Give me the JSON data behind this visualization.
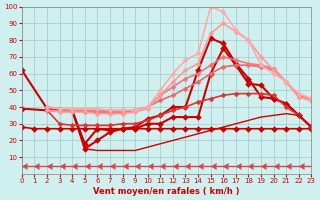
{
  "background_color": "#d0f0f0",
  "grid_color": "#a0c8c8",
  "xlabel": "Vent moyen/en rafales ( km/h )",
  "ylabel": "",
  "xlim": [
    0,
    23
  ],
  "ylim": [
    0,
    100
  ],
  "yticks": [
    10,
    20,
    30,
    40,
    50,
    60,
    70,
    80,
    90,
    100
  ],
  "xticks": [
    0,
    1,
    2,
    3,
    4,
    5,
    6,
    7,
    8,
    9,
    10,
    11,
    12,
    13,
    14,
    15,
    16,
    17,
    18,
    19,
    20,
    21,
    22,
    23
  ],
  "lines": [
    {
      "x": [
        0,
        1,
        2,
        3,
        4,
        5,
        6,
        7,
        8,
        9,
        10,
        11,
        12,
        13,
        14,
        15,
        16,
        17,
        18,
        19,
        20,
        21,
        22,
        23
      ],
      "y": [
        28,
        27,
        27,
        27,
        27,
        27,
        27,
        27,
        27,
        27,
        27,
        27,
        27,
        27,
        27,
        27,
        27,
        27,
        27,
        27,
        27,
        27,
        27,
        27
      ],
      "color": "#cc0000",
      "lw": 1.2,
      "marker": "D",
      "ms": 3
    },
    {
      "x": [
        0,
        1,
        2,
        3,
        4,
        5,
        6,
        7,
        8,
        9,
        10,
        11,
        12,
        13,
        14,
        15,
        16,
        17,
        18,
        19,
        20,
        21,
        22,
        23
      ],
      "y": [
        5,
        5,
        5,
        5,
        5,
        5,
        5,
        5,
        5,
        5,
        5,
        5,
        5,
        5,
        5,
        5,
        5,
        5,
        5,
        5,
        5,
        5,
        5,
        5
      ],
      "color": "#dd4444",
      "lw": 1.0,
      "marker": "4",
      "ms": 5
    },
    {
      "x": [
        0,
        2,
        3,
        4,
        5,
        6,
        7,
        8,
        9,
        10,
        11,
        12,
        13,
        14,
        15,
        16,
        17,
        18,
        19,
        20,
        21,
        22,
        23
      ],
      "y": [
        62,
        39,
        38,
        38,
        18,
        27,
        26,
        27,
        27,
        30,
        30,
        34,
        34,
        34,
        60,
        75,
        65,
        54,
        53,
        45,
        42,
        35,
        28
      ],
      "color": "#cc0000",
      "lw": 1.5,
      "marker": "D",
      "ms": 3
    },
    {
      "x": [
        0,
        2,
        3,
        4,
        5,
        6,
        7,
        8,
        9,
        10,
        11,
        12,
        13,
        14,
        15,
        16,
        17,
        18,
        19,
        20,
        21,
        22,
        23
      ],
      "y": [
        39,
        38,
        38,
        38,
        15,
        20,
        25,
        27,
        28,
        33,
        35,
        40,
        40,
        62,
        81,
        78,
        66,
        57,
        46,
        45,
        42,
        35,
        28
      ],
      "color": "#cc0000",
      "lw": 1.5,
      "marker": "D",
      "ms": 3
    },
    {
      "x": [
        2,
        3,
        4,
        5,
        6,
        7,
        8,
        9,
        10,
        11,
        12,
        13,
        14,
        15,
        16,
        17,
        18,
        19,
        20,
        21,
        22,
        23
      ],
      "y": [
        38,
        30,
        29,
        29,
        29,
        29,
        30,
        30,
        32,
        35,
        38,
        40,
        43,
        45,
        47,
        48,
        48,
        48,
        47,
        40,
        35,
        28
      ],
      "color": "#dd3333",
      "lw": 1.2,
      "marker": "D",
      "ms": 2.5
    },
    {
      "x": [
        2,
        3,
        4,
        5,
        6,
        7,
        8,
        9,
        10,
        11,
        12,
        13,
        14,
        15,
        16,
        17,
        18,
        19,
        20,
        21,
        22,
        23
      ],
      "y": [
        40,
        39,
        38,
        37,
        37,
        37,
        37,
        38,
        40,
        44,
        47,
        51,
        55,
        60,
        64,
        65,
        65,
        64,
        62,
        55,
        46,
        44
      ],
      "color": "#ee6666",
      "lw": 1.2,
      "marker": "D",
      "ms": 2.5
    },
    {
      "x": [
        2,
        3,
        4,
        5,
        6,
        7,
        8,
        9,
        10,
        11,
        12,
        13,
        14,
        15,
        16,
        17,
        18,
        19,
        20,
        21,
        22,
        23
      ],
      "y": [
        38,
        38,
        38,
        38,
        38,
        38,
        38,
        38,
        40,
        47,
        52,
        57,
        60,
        65,
        70,
        68,
        66,
        65,
        63,
        55,
        47,
        45
      ],
      "color": "#ee7777",
      "lw": 1.2,
      "marker": "D",
      "ms": 2.5
    },
    {
      "x": [
        2,
        3,
        4,
        5,
        6,
        7,
        8,
        9,
        10,
        11,
        12,
        13,
        14,
        15,
        16,
        17,
        18,
        19,
        20,
        21,
        22,
        23
      ],
      "y": [
        38,
        37,
        37,
        37,
        36,
        36,
        36,
        37,
        39,
        47,
        55,
        62,
        66,
        84,
        90,
        85,
        80,
        70,
        62,
        55,
        46,
        44
      ],
      "color": "#ff9999",
      "lw": 1.2,
      "marker": "D",
      "ms": 2.5
    },
    {
      "x": [
        2,
        3,
        4,
        5,
        6,
        7,
        8,
        9,
        10,
        11,
        12,
        13,
        14,
        15,
        16,
        17,
        18,
        19,
        20,
        21,
        22,
        23
      ],
      "y": [
        40,
        39,
        39,
        39,
        39,
        38,
        38,
        38,
        40,
        50,
        60,
        68,
        72,
        100,
        97,
        86,
        80,
        65,
        60,
        55,
        48,
        45
      ],
      "color": "#ffaaaa",
      "lw": 1.2,
      "marker": "D",
      "ms": 2.5
    },
    {
      "x": [
        5,
        6,
        7,
        8,
        9,
        10,
        11,
        12,
        13,
        14,
        15,
        16,
        17,
        18,
        19,
        20,
        21,
        22,
        23
      ],
      "y": [
        15,
        14,
        14,
        14,
        14,
        16,
        18,
        20,
        22,
        24,
        26,
        28,
        30,
        32,
        34,
        35,
        36,
        35,
        28
      ],
      "color": "#cc0000",
      "lw": 1.0,
      "marker": null,
      "ms": 0
    }
  ]
}
